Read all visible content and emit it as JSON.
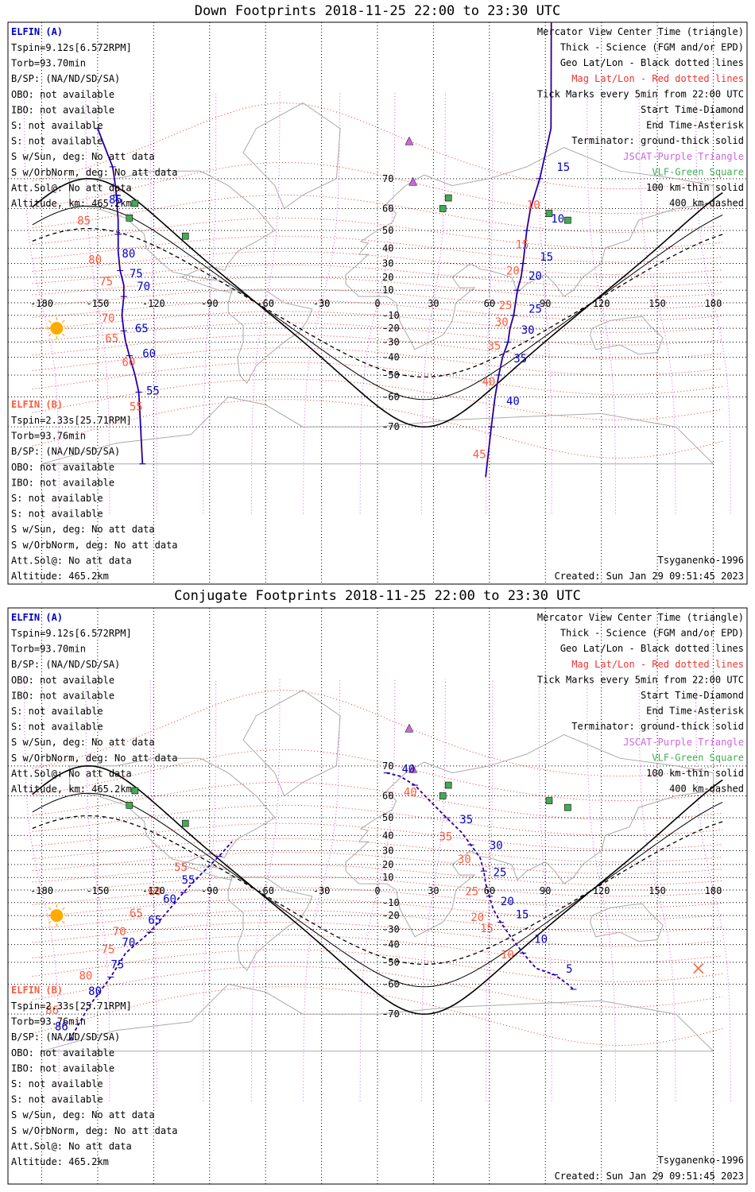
{
  "panels": [
    {
      "title": "Down Footprints 2018-11-25 22:00 to 23:30 UTC",
      "legend": [
        "Mercator View Center Time (triangle)",
        "Thick - Science (FGM and/or EPD)",
        "Geo Lat/Lon - Black dotted lines",
        "Mag Lat/Lon - Red dotted lines",
        "Tick Marks every 5min from 22:00 UTC",
        "Start Time-Diamond",
        "End Time-Asterisk",
        "Terminator: ground-thick solid",
        "JSCAT-Purple Triangle",
        "VLF-Green Square",
        "100 km-thin solid",
        "400 km-dashed"
      ],
      "a_header": "ELFIN (A)",
      "a_info": [
        "Tspin=9.12s[6.572RPM]",
        "Torb=93.70min",
        "B/SP: (NA/ND/SD/SA)",
        "OBO: not available",
        "IBO: not available",
        "S: not available",
        "S: not available",
        "S w/Sun, deg: No att data",
        "S w/OrbNorm, deg: No att data",
        "Att.Sol@: No att data",
        "Altitude, km: 465.2km"
      ],
      "b_header": "ELFIN (B)",
      "b_info": [
        "Tspin=2.33s[25.71RPM]",
        "Torb=93.76min",
        "B/SP: (NA/ND/SD/SA)",
        "OBO: not available",
        "IBO: not available",
        "S: not available",
        "S: not available",
        "S w/Sun, deg: No att data",
        "S w/OrbNorm, deg: No att data",
        "Att.Sol@: No att data",
        "Altitude: 465.2km"
      ],
      "model": "Tsyganenko-1996",
      "created": "Created: Sun Jan 29 09:51:45 2023"
    },
    {
      "title": "Conjugate Footprints 2018-11-25 22:00 to 23:30 UTC",
      "legend": [
        "Mercator View Center Time (triangle)",
        "Thick - Science (FGM and/or EPD)",
        "Geo Lat/Lon - Black dotted lines",
        "Mag Lat/Lon - Red dotted lines",
        "Tick Marks every 5min from 22:00 UTC",
        "Start Time-Diamond",
        "End Time-Asterisk",
        "Terminator: ground-thick solid",
        "JSCAT-Purple Triangle",
        "VLF-Green Square",
        "100 km-thin solid",
        "400 km-dashed"
      ],
      "a_header": "ELFIN (A)",
      "a_info": [
        "Tspin=9.12s[6.572RPM]",
        "Torb=93.70min",
        "B/SP: (NA/ND/SD/SA)",
        "OBO: not available",
        "IBO: not available",
        "S: not available",
        "S: not available",
        "S w/Sun, deg: No att data",
        "S w/OrbNorm, deg: No att data",
        "Att.Sol@: No att data",
        "Altitude, km: 465.2km"
      ],
      "b_header": "ELFIN (B)",
      "b_info": [
        "Tspin=2.33s[25.71RPM]",
        "Torb=93.76min",
        "B/SP: (NA/ND/SD/SA)",
        "OBO: not available",
        "IBO: not available",
        "S: not available",
        "S: not available",
        "S w/Sun, deg: No att data",
        "S w/OrbNorm, deg: No att data",
        "Att.Sol@: No att data",
        "Altitude: 465.2km"
      ],
      "model": "Tsyganenko-1996",
      "created": "Created: Sun Jan 29 09:51:45 2023"
    }
  ],
  "map": {
    "lon_ticks": [
      -180,
      -150,
      -120,
      -90,
      -60,
      -30,
      0,
      30,
      60,
      90,
      120,
      150,
      180
    ],
    "lat_ticks": [
      70,
      60,
      50,
      40,
      30,
      20,
      10,
      -10,
      -20,
      -30,
      -40,
      -50,
      -60,
      -70
    ],
    "colors": {
      "elfin_a": "#0000cc",
      "elfin_b": "#ff5a3c",
      "mag_grid": "#ee3333",
      "mag_lon": "#dd55dd",
      "jscat": "#cc66dd",
      "vlf": "#44aa55",
      "sun": "#ffaa00",
      "coast": "#aaaaaa"
    }
  },
  "tracks": {
    "down_a": {
      "points": [
        [
          -150,
          80
        ],
        [
          -145,
          76
        ],
        [
          -142,
          73
        ],
        [
          -141,
          70
        ],
        [
          -140,
          65
        ],
        [
          -139,
          55
        ],
        [
          -139,
          48
        ],
        [
          -139,
          38
        ],
        [
          -138,
          25
        ],
        [
          -136,
          14
        ],
        [
          -136,
          5
        ],
        [
          -137,
          -10
        ],
        [
          -136,
          -22
        ],
        [
          -135,
          -30
        ],
        [
          -133,
          -39
        ],
        [
          -130,
          -50
        ],
        [
          -128,
          -58
        ],
        [
          -127,
          -70
        ],
        [
          -126,
          -78
        ]
      ],
      "labels": [
        {
          "t": "85",
          "lon": -144,
          "lat": 62
        },
        {
          "t": "80",
          "lon": -137,
          "lat": 34
        },
        {
          "t": "75",
          "lon": -133,
          "lat": 20
        },
        {
          "t": "70",
          "lon": -129,
          "lat": 10
        },
        {
          "t": "65",
          "lon": -130,
          "lat": -23
        },
        {
          "t": "60",
          "lon": -126,
          "lat": -40
        },
        {
          "t": "55",
          "lon": -124,
          "lat": -59
        }
      ]
    },
    "down_b": {
      "points": [
        [
          -150,
          80
        ],
        [
          -145,
          76
        ],
        [
          -142,
          73
        ],
        [
          -141,
          70
        ],
        [
          -140,
          65
        ],
        [
          -139,
          55
        ],
        [
          -139,
          48
        ],
        [
          -139,
          38
        ],
        [
          -138,
          25
        ],
        [
          -136,
          14
        ],
        [
          -136,
          5
        ],
        [
          -137,
          -10
        ],
        [
          -136,
          -22
        ],
        [
          -135,
          -30
        ],
        [
          -133,
          -39
        ],
        [
          -130,
          -50
        ],
        [
          -128,
          -58
        ],
        [
          -127,
          -70
        ],
        [
          -126,
          -78
        ]
      ],
      "labels": [
        {
          "t": "85",
          "lon": -161,
          "lat": 53
        },
        {
          "t": "80",
          "lon": -155,
          "lat": 30
        },
        {
          "t": "75",
          "lon": -149,
          "lat": 14
        },
        {
          "t": "70",
          "lon": -148,
          "lat": -15
        },
        {
          "t": "65",
          "lon": -146,
          "lat": -30
        },
        {
          "t": "60",
          "lon": -137,
          "lat": -45
        },
        {
          "t": "55",
          "lon": -133,
          "lat": -65
        }
      ]
    },
    "down_a2": {
      "points": [
        [
          97,
          90
        ],
        [
          93,
          80
        ],
        [
          87,
          70
        ],
        [
          82,
          60
        ],
        [
          80,
          50
        ],
        [
          79,
          40
        ],
        [
          78,
          30
        ],
        [
          77,
          20
        ],
        [
          75,
          10
        ],
        [
          74,
          0
        ],
        [
          73,
          -10
        ],
        [
          71,
          -20
        ],
        [
          70,
          -30
        ],
        [
          67,
          -40
        ],
        [
          65,
          -50
        ],
        [
          63,
          -60
        ],
        [
          61,
          -70
        ],
        [
          58,
          -80
        ]
      ],
      "labels": [
        {
          "t": "15",
          "lon": 96,
          "lat": 72
        },
        {
          "t": "10",
          "lon": 93,
          "lat": 54
        },
        {
          "t": "15",
          "lon": 87,
          "lat": 32
        },
        {
          "t": "20",
          "lon": 81,
          "lat": 18
        },
        {
          "t": "25",
          "lon": 81,
          "lat": -8
        },
        {
          "t": "30",
          "lon": 77,
          "lat": -24
        },
        {
          "t": "35",
          "lon": 73,
          "lat": -43
        },
        {
          "t": "40",
          "lon": 69,
          "lat": -63
        }
      ]
    },
    "down_b2": {
      "points": [
        [
          97,
          90
        ],
        [
          93,
          80
        ],
        [
          87,
          70
        ],
        [
          82,
          60
        ],
        [
          80,
          50
        ],
        [
          79,
          40
        ],
        [
          78,
          30
        ],
        [
          77,
          20
        ],
        [
          75,
          10
        ],
        [
          74,
          0
        ],
        [
          73,
          -10
        ],
        [
          71,
          -20
        ],
        [
          70,
          -30
        ],
        [
          67,
          -40
        ],
        [
          65,
          -50
        ],
        [
          63,
          -60
        ],
        [
          61,
          -70
        ],
        [
          58,
          -80
        ]
      ],
      "labels": [
        {
          "t": "10",
          "lon": 80,
          "lat": 60
        },
        {
          "t": "15",
          "lon": 74,
          "lat": 40
        },
        {
          "t": "20",
          "lon": 69,
          "lat": 22
        },
        {
          "t": "25",
          "lon": 65,
          "lat": -5
        },
        {
          "t": "30",
          "lon": 63,
          "lat": -18
        },
        {
          "t": "35",
          "lon": 59,
          "lat": -35
        },
        {
          "t": "40",
          "lon": 56,
          "lat": -55
        },
        {
          "t": "45",
          "lon": 51,
          "lat": -77
        }
      ]
    },
    "conj_a": {
      "points": [
        [
          5,
          68
        ],
        [
          12,
          67
        ],
        [
          20,
          64
        ],
        [
          28,
          58
        ],
        [
          37,
          50
        ],
        [
          45,
          42
        ],
        [
          50,
          34
        ],
        [
          55,
          25
        ],
        [
          57,
          15
        ],
        [
          58,
          5
        ],
        [
          60,
          -5
        ],
        [
          62,
          -15
        ],
        [
          66,
          -25
        ],
        [
          72,
          -36
        ],
        [
          78,
          -45
        ],
        [
          85,
          -53
        ],
        [
          95,
          -56
        ],
        [
          102,
          -60
        ],
        [
          105,
          -62
        ]
      ],
      "labels": [
        {
          "t": "40",
          "lon": 13,
          "lat": 68
        },
        {
          "t": "35",
          "lon": 44,
          "lat": 47
        },
        {
          "t": "30",
          "lon": 60,
          "lat": 31
        },
        {
          "t": "25",
          "lon": 62,
          "lat": 11
        },
        {
          "t": "20",
          "lon": 66,
          "lat": -12
        },
        {
          "t": "15",
          "lon": 74,
          "lat": -22
        },
        {
          "t": "10",
          "lon": 84,
          "lat": -39
        },
        {
          "t": "5",
          "lon": 101,
          "lat": -55
        }
      ]
    },
    "conj_b": {
      "points": [
        [
          5,
          68
        ],
        [
          12,
          67
        ],
        [
          20,
          64
        ],
        [
          28,
          58
        ],
        [
          37,
          50
        ],
        [
          45,
          42
        ],
        [
          50,
          34
        ],
        [
          55,
          25
        ],
        [
          57,
          15
        ],
        [
          58,
          5
        ],
        [
          60,
          -5
        ],
        [
          62,
          -15
        ],
        [
          66,
          -25
        ],
        [
          72,
          -36
        ],
        [
          78,
          -45
        ],
        [
          85,
          -53
        ],
        [
          95,
          -56
        ],
        [
          102,
          -60
        ],
        [
          105,
          -62
        ]
      ],
      "labels": [
        {
          "t": "40",
          "lon": 14,
          "lat": 60
        },
        {
          "t": "35",
          "lon": 33,
          "lat": 37
        },
        {
          "t": "30",
          "lon": 43,
          "lat": 21
        },
        {
          "t": "25",
          "lon": 47,
          "lat": -4
        },
        {
          "t": "20",
          "lon": 50,
          "lat": -24
        },
        {
          "t": "15",
          "lon": 55,
          "lat": -32
        },
        {
          "t": "10",
          "lon": 66,
          "lat": -48
        }
      ]
    },
    "conj_a_w": {
      "points": [
        [
          -165,
          -76
        ],
        [
          -155,
          -68
        ],
        [
          -143,
          -57
        ],
        [
          -135,
          -45
        ],
        [
          -122,
          -32
        ],
        [
          -112,
          -16
        ],
        [
          -104,
          -2
        ],
        [
          -95,
          12
        ],
        [
          -85,
          26
        ],
        [
          -78,
          36
        ]
      ],
      "labels": [
        {
          "t": "80",
          "lon": -155,
          "lat": -64
        },
        {
          "t": "75",
          "lon": -143,
          "lat": -53
        },
        {
          "t": "70",
          "lon": -137,
          "lat": -41
        },
        {
          "t": "65",
          "lon": -123,
          "lat": -26
        },
        {
          "t": "60",
          "lon": -115,
          "lat": -10
        },
        {
          "t": "55",
          "lon": -105,
          "lat": 5
        },
        {
          "t": "86",
          "lon": -173,
          "lat": -74
        }
      ]
    },
    "conj_b_w": {
      "points": [
        [
          -165,
          -76
        ],
        [
          -155,
          -68
        ],
        [
          -143,
          -57
        ],
        [
          -135,
          -45
        ],
        [
          -122,
          -32
        ],
        [
          -112,
          -16
        ],
        [
          -104,
          -2
        ],
        [
          -95,
          12
        ],
        [
          -85,
          26
        ],
        [
          -78,
          36
        ]
      ],
      "labels": [
        {
          "t": "80",
          "lon": -160,
          "lat": -58
        },
        {
          "t": "75",
          "lon": -148,
          "lat": -45
        },
        {
          "t": "70",
          "lon": -142,
          "lat": -34
        },
        {
          "t": "65",
          "lon": -133,
          "lat": -21
        },
        {
          "t": "60",
          "lon": -123,
          "lat": -4
        },
        {
          "t": "55",
          "lon": -109,
          "lat": 15
        },
        {
          "t": "86",
          "lon": -178,
          "lat": -70
        }
      ]
    }
  }
}
